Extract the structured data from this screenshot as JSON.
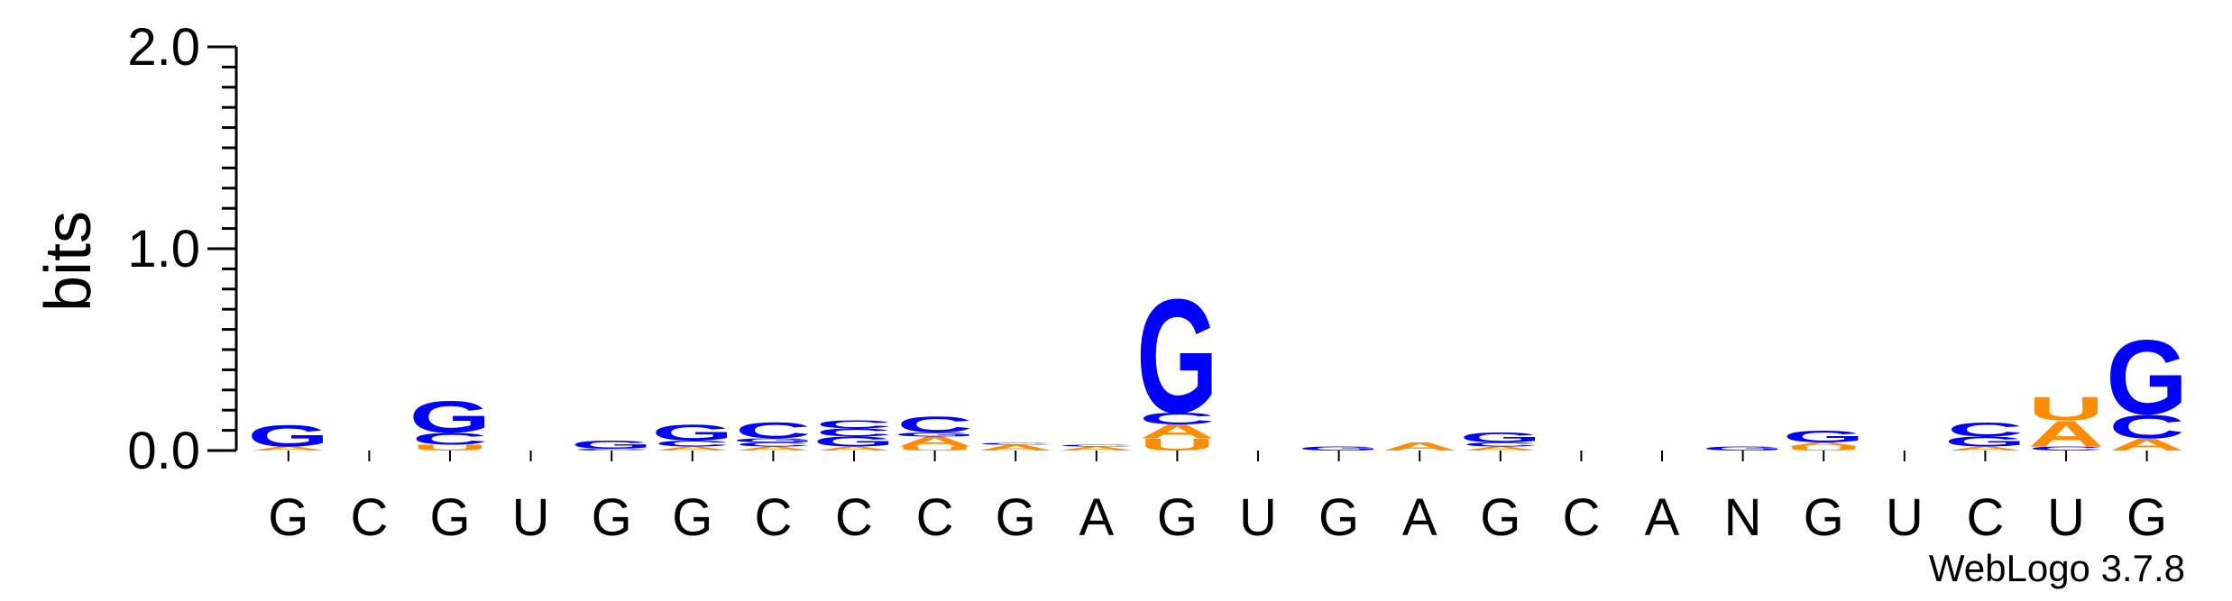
{
  "colors": {
    "G": "#0000ff",
    "C": "#0000ff",
    "A": "#ff8c00",
    "U": "#ff8c00",
    "N": "#0000ff"
  },
  "chart_data": {
    "type": "sequence-logo",
    "ylabel": "bits",
    "ylim": [
      0,
      2.0
    ],
    "yticks": [
      "0.0",
      "1.0",
      "2.0"
    ],
    "credit": "WebLogo 3.7.8",
    "positions": [
      {
        "label": "G",
        "stack": [
          {
            "letter": "A",
            "bits": 0.02
          },
          {
            "letter": "G",
            "bits": 0.11
          }
        ]
      },
      {
        "label": "C",
        "stack": []
      },
      {
        "label": "G",
        "stack": [
          {
            "letter": "U",
            "bits": 0.03
          },
          {
            "letter": "C",
            "bits": 0.06
          },
          {
            "letter": "G",
            "bits": 0.16
          }
        ]
      },
      {
        "label": "U",
        "stack": []
      },
      {
        "label": "G",
        "stack": [
          {
            "letter": "C",
            "bits": 0.01
          },
          {
            "letter": "G",
            "bits": 0.04
          }
        ]
      },
      {
        "label": "G",
        "stack": [
          {
            "letter": "A",
            "bits": 0.02
          },
          {
            "letter": "C",
            "bits": 0.03
          },
          {
            "letter": "G",
            "bits": 0.08
          }
        ]
      },
      {
        "label": "C",
        "stack": [
          {
            "letter": "A",
            "bits": 0.02
          },
          {
            "letter": "C",
            "bits": 0.02
          },
          {
            "letter": "G",
            "bits": 0.02
          },
          {
            "letter": "C",
            "bits": 0.08
          }
        ]
      },
      {
        "label": "C",
        "stack": [
          {
            "letter": "A",
            "bits": 0.02
          },
          {
            "letter": "G",
            "bits": 0.05
          },
          {
            "letter": "C",
            "bits": 0.04
          },
          {
            "letter": "C",
            "bits": 0.04
          }
        ]
      },
      {
        "label": "C",
        "stack": [
          {
            "letter": "U",
            "bits": 0.02
          },
          {
            "letter": "A",
            "bits": 0.05
          },
          {
            "letter": "G",
            "bits": 0.02
          },
          {
            "letter": "C",
            "bits": 0.08
          }
        ]
      },
      {
        "label": "G",
        "stack": [
          {
            "letter": "A",
            "bits": 0.03
          },
          {
            "letter": "C",
            "bits": 0.01
          }
        ]
      },
      {
        "label": "A",
        "stack": [
          {
            "letter": "A",
            "bits": 0.02
          },
          {
            "letter": "C",
            "bits": 0.01
          }
        ]
      },
      {
        "label": "G",
        "stack": [
          {
            "letter": "U",
            "bits": 0.06
          },
          {
            "letter": "A",
            "bits": 0.07
          },
          {
            "letter": "C",
            "bits": 0.06
          },
          {
            "letter": "G",
            "bits": 0.58
          }
        ]
      },
      {
        "label": "U",
        "stack": []
      },
      {
        "label": "G",
        "stack": [
          {
            "letter": "G",
            "bits": 0.02
          }
        ]
      },
      {
        "label": "A",
        "stack": [
          {
            "letter": "A",
            "bits": 0.04
          }
        ]
      },
      {
        "label": "G",
        "stack": [
          {
            "letter": "A",
            "bits": 0.02
          },
          {
            "letter": "C",
            "bits": 0.02
          },
          {
            "letter": "G",
            "bits": 0.05
          }
        ]
      },
      {
        "label": "C",
        "stack": []
      },
      {
        "label": "A",
        "stack": []
      },
      {
        "label": "N",
        "stack": [
          {
            "letter": "G",
            "bits": 0.02
          }
        ]
      },
      {
        "label": "G",
        "stack": [
          {
            "letter": "U",
            "bits": 0.02
          },
          {
            "letter": "A",
            "bits": 0.02
          },
          {
            "letter": "G",
            "bits": 0.06
          }
        ]
      },
      {
        "label": "U",
        "stack": []
      },
      {
        "label": "C",
        "stack": [
          {
            "letter": "A",
            "bits": 0.02
          },
          {
            "letter": "G",
            "bits": 0.05
          },
          {
            "letter": "C",
            "bits": 0.07
          }
        ]
      },
      {
        "label": "U",
        "stack": [
          {
            "letter": "C",
            "bits": 0.02
          },
          {
            "letter": "A",
            "bits": 0.13
          },
          {
            "letter": "U",
            "bits": 0.12
          }
        ]
      },
      {
        "label": "G",
        "stack": [
          {
            "letter": "A",
            "bits": 0.06
          },
          {
            "letter": "C",
            "bits": 0.12
          },
          {
            "letter": "G",
            "bits": 0.38
          }
        ]
      }
    ]
  }
}
